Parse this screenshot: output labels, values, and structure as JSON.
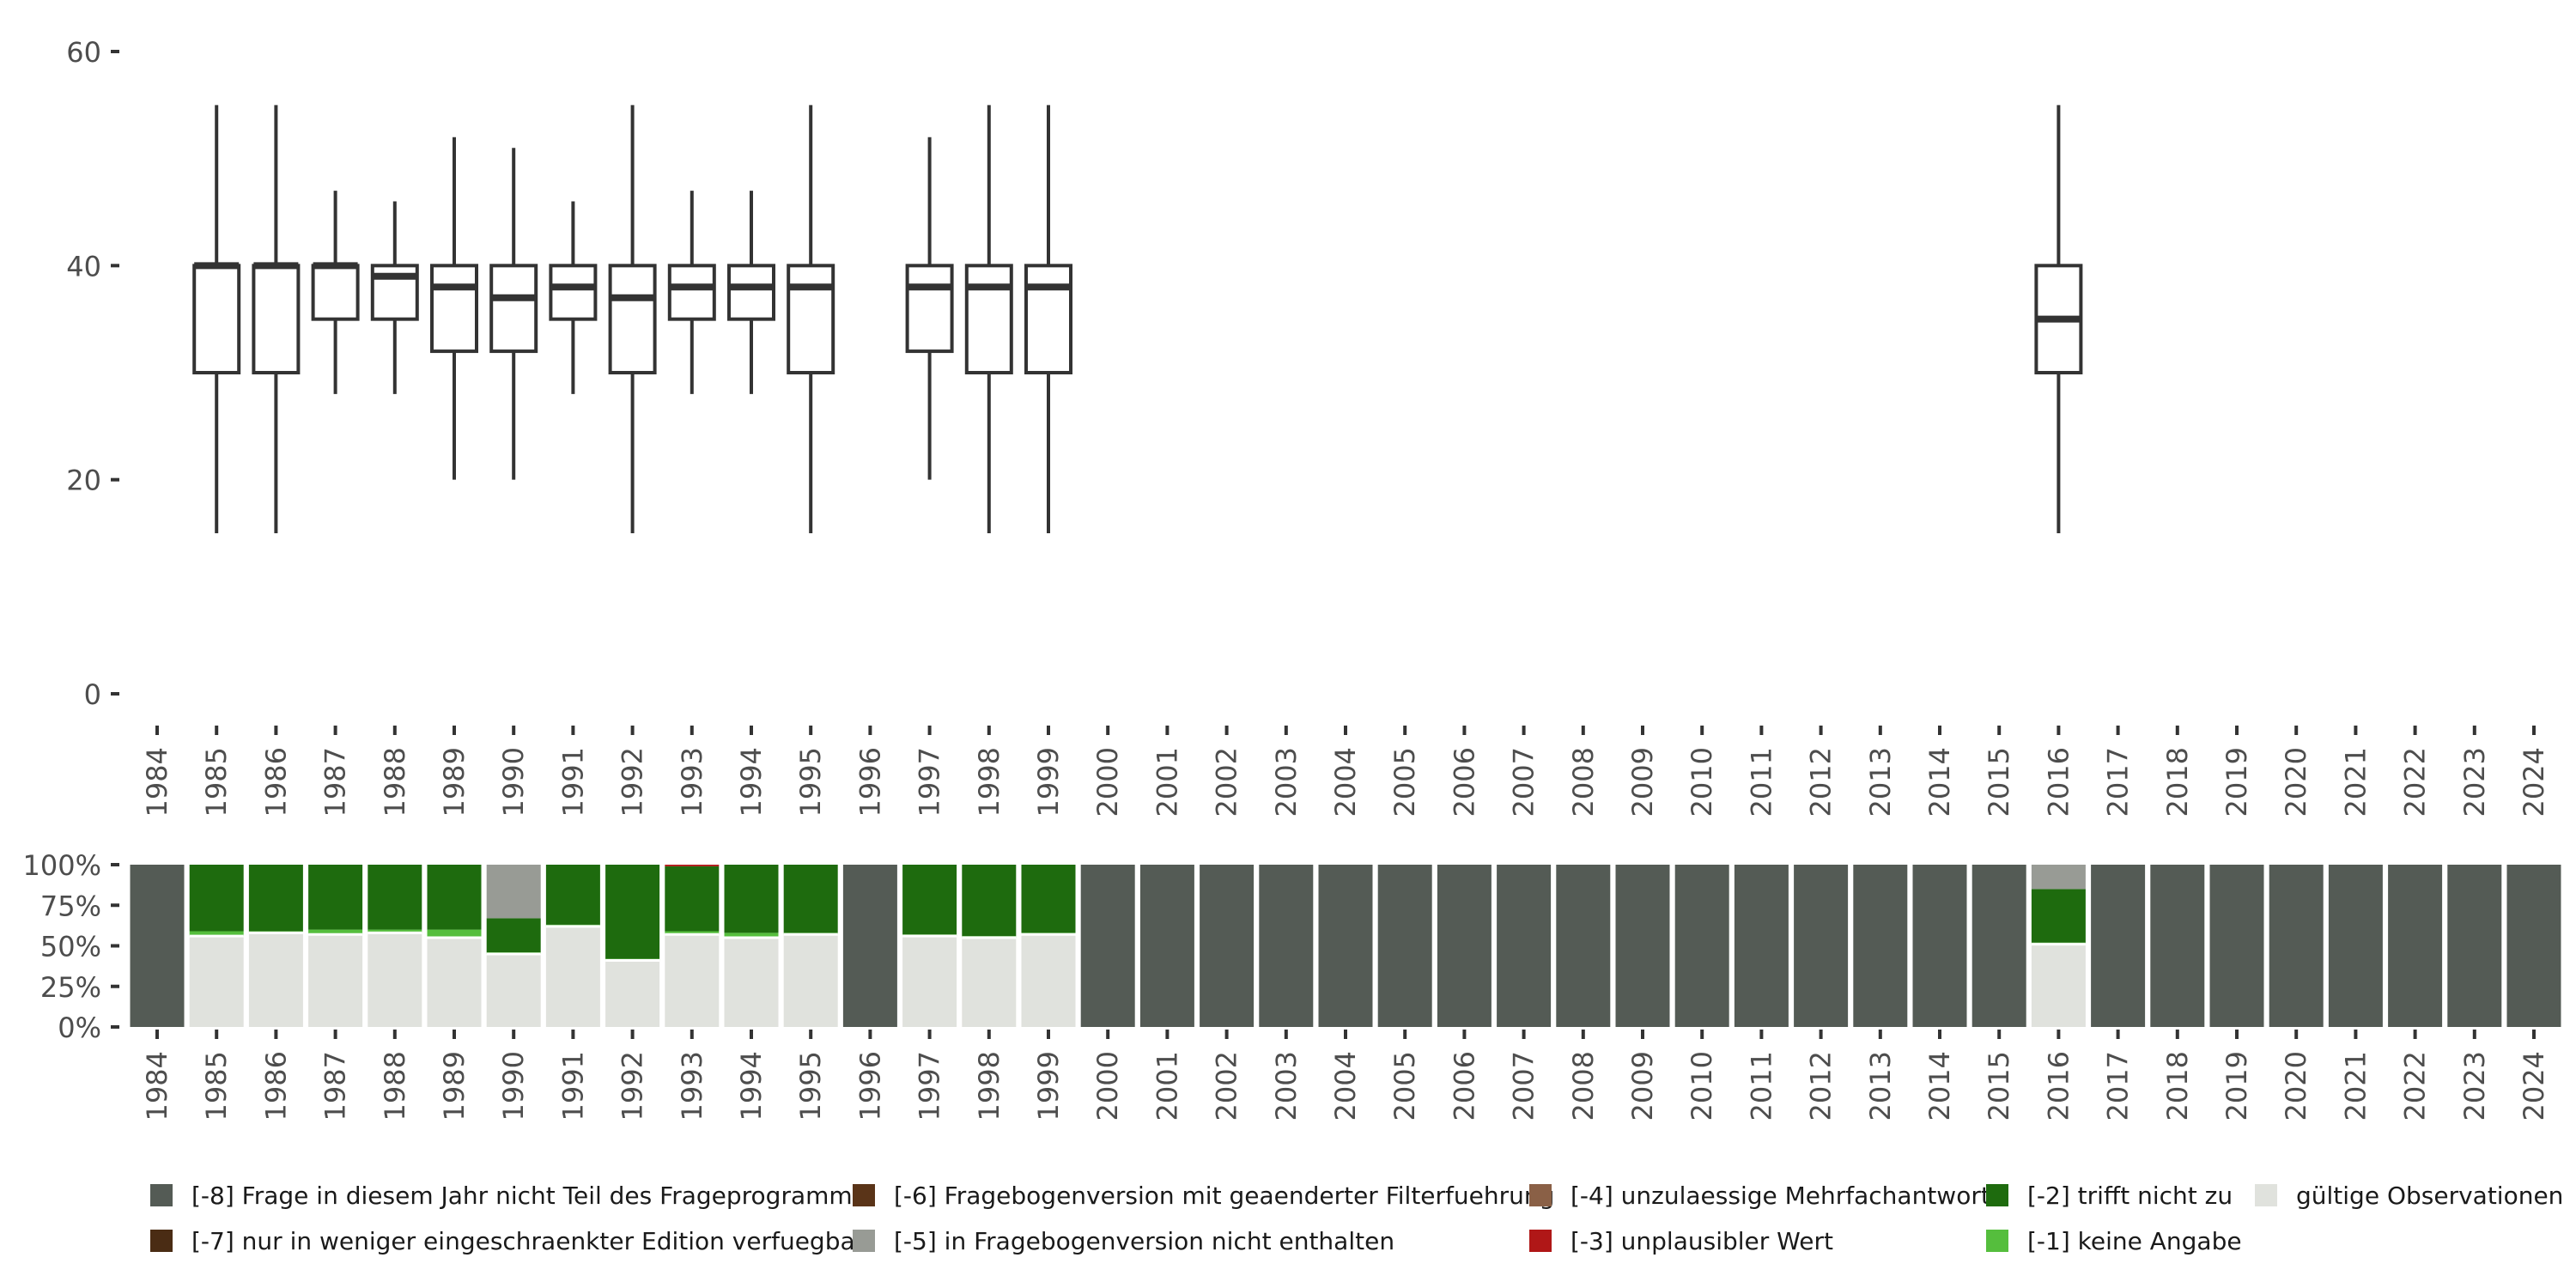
{
  "chart_data": [
    {
      "type": "boxplot",
      "title": "",
      "xlabel": "",
      "ylabel": "",
      "ylim": [
        0,
        60
      ],
      "yticks": [
        0,
        20,
        40,
        60
      ],
      "grid": false,
      "categories": [
        "1984",
        "1985",
        "1986",
        "1987",
        "1988",
        "1989",
        "1990",
        "1991",
        "1992",
        "1993",
        "1994",
        "1995",
        "1996",
        "1997",
        "1998",
        "1999",
        "2000",
        "2001",
        "2002",
        "2003",
        "2004",
        "2005",
        "2006",
        "2007",
        "2008",
        "2009",
        "2010",
        "2011",
        "2012",
        "2013",
        "2014",
        "2015",
        "2016",
        "2017",
        "2018",
        "2019",
        "2020",
        "2021",
        "2022",
        "2023",
        "2024"
      ],
      "boxes": [
        {
          "year": "1985",
          "whislo": 15,
          "q1": 30,
          "med": 40,
          "q3": 40,
          "whishi": 55
        },
        {
          "year": "1986",
          "whislo": 15,
          "q1": 30,
          "med": 40,
          "q3": 40,
          "whishi": 55
        },
        {
          "year": "1987",
          "whislo": 28,
          "q1": 35,
          "med": 40,
          "q3": 40,
          "whishi": 47
        },
        {
          "year": "1988",
          "whislo": 28,
          "q1": 35,
          "med": 39,
          "q3": 40,
          "whishi": 46
        },
        {
          "year": "1989",
          "whislo": 20,
          "q1": 32,
          "med": 38,
          "q3": 40,
          "whishi": 52
        },
        {
          "year": "1990",
          "whislo": 20,
          "q1": 32,
          "med": 37,
          "q3": 40,
          "whishi": 51
        },
        {
          "year": "1991",
          "whislo": 28,
          "q1": 35,
          "med": 38,
          "q3": 40,
          "whishi": 46
        },
        {
          "year": "1992",
          "whislo": 15,
          "q1": 30,
          "med": 37,
          "q3": 40,
          "whishi": 55
        },
        {
          "year": "1993",
          "whislo": 28,
          "q1": 35,
          "med": 38,
          "q3": 40,
          "whishi": 47
        },
        {
          "year": "1994",
          "whislo": 28,
          "q1": 35,
          "med": 38,
          "q3": 40,
          "whishi": 47
        },
        {
          "year": "1995",
          "whislo": 15,
          "q1": 30,
          "med": 38,
          "q3": 40,
          "whishi": 55
        },
        {
          "year": "1997",
          "whislo": 20,
          "q1": 32,
          "med": 38,
          "q3": 40,
          "whishi": 52
        },
        {
          "year": "1998",
          "whislo": 15,
          "q1": 30,
          "med": 38,
          "q3": 40,
          "whishi": 55
        },
        {
          "year": "1999",
          "whislo": 15,
          "q1": 30,
          "med": 38,
          "q3": 40,
          "whishi": 55
        },
        {
          "year": "2016",
          "whislo": 15,
          "q1": 30,
          "med": 35,
          "q3": 40,
          "whishi": 55
        }
      ]
    },
    {
      "type": "stacked-bar",
      "title": "",
      "xlabel": "",
      "ylabel": "",
      "ylim": [
        0,
        1
      ],
      "ytick_labels": [
        "0%",
        "25%",
        "50%",
        "75%",
        "100%"
      ],
      "categories": [
        "1984",
        "1985",
        "1986",
        "1987",
        "1988",
        "1989",
        "1990",
        "1991",
        "1992",
        "1993",
        "1994",
        "1995",
        "1996",
        "1997",
        "1998",
        "1999",
        "2000",
        "2001",
        "2002",
        "2003",
        "2004",
        "2005",
        "2006",
        "2007",
        "2008",
        "2009",
        "2010",
        "2011",
        "2012",
        "2013",
        "2014",
        "2015",
        "2016",
        "2017",
        "2018",
        "2019",
        "2020",
        "2021",
        "2022",
        "2023",
        "2024"
      ],
      "stack_order": [
        "valid",
        "m1",
        "m2",
        "m3",
        "m4",
        "m5",
        "m6",
        "m7",
        "m8"
      ],
      "bar_colors": {
        "valid": "#e0e2dd",
        "m1": "#55be3d",
        "m2": "#1e6b0e",
        "m3": "#b01717",
        "m4": "#8a6046",
        "m5": "#989b95",
        "m6": "#5a3418",
        "m7": "#4a2c14",
        "m8": "#545b55"
      },
      "shares": {
        "1985": {
          "valid": 0.56,
          "m1": 0.03,
          "m2": 0.41
        },
        "1986": {
          "valid": 0.58,
          "m1": 0.01,
          "m2": 0.41
        },
        "1987": {
          "valid": 0.57,
          "m1": 0.03,
          "m2": 0.4
        },
        "1988": {
          "valid": 0.58,
          "m1": 0.02,
          "m2": 0.4
        },
        "1989": {
          "valid": 0.55,
          "m1": 0.05,
          "m2": 0.4
        },
        "1990": {
          "valid": 0.45,
          "m1": 0.01,
          "m2": 0.21,
          "m5": 0.33
        },
        "1991": {
          "valid": 0.62,
          "m1": 0.01,
          "m2": 0.37
        },
        "1992": {
          "valid": 0.41,
          "m1": 0.01,
          "m2": 0.58
        },
        "1993": {
          "valid": 0.57,
          "m1": 0.02,
          "m2": 0.4,
          "m3": 0.01
        },
        "1994": {
          "valid": 0.55,
          "m1": 0.03,
          "m2": 0.42
        },
        "1995": {
          "valid": 0.57,
          "m1": 0.01,
          "m2": 0.42
        },
        "1997": {
          "valid": 0.56,
          "m1": 0.01,
          "m2": 0.43
        },
        "1998": {
          "valid": 0.55,
          "m1": 0.01,
          "m2": 0.44
        },
        "1999": {
          "valid": 0.57,
          "m1": 0.01,
          "m2": 0.42
        },
        "2016": {
          "valid": 0.51,
          "m1": 0.01,
          "m2": 0.33,
          "m5": 0.15
        }
      },
      "default_share": {
        "m8": 1.0
      }
    }
  ],
  "legend": [
    {
      "key": "m8",
      "label": "[-8] Frage in diesem Jahr nicht Teil des Frageprogramms",
      "color": "#545b55"
    },
    {
      "key": "m7",
      "label": "[-7] nur in weniger eingeschraenkter Edition verfuegbar",
      "color": "#4a2c14"
    },
    {
      "key": "m6",
      "label": "[-6] Fragebogenversion mit geaenderter Filterfuehrung",
      "color": "#5a3418"
    },
    {
      "key": "m5",
      "label": "[-5] in Fragebogenversion nicht enthalten",
      "color": "#989b95"
    },
    {
      "key": "m4",
      "label": "[-4] unzulaessige Mehrfachantwort",
      "color": "#8a6046"
    },
    {
      "key": "m3",
      "label": "[-3] unplausibler Wert",
      "color": "#b01717"
    },
    {
      "key": "m2",
      "label": "[-2] trifft nicht zu",
      "color": "#1e6b0e"
    },
    {
      "key": "m1",
      "label": "[-1] keine Angabe",
      "color": "#55be3d"
    },
    {
      "key": "valid",
      "label": "gültige Observationen",
      "color": "#e0e2dd"
    }
  ]
}
